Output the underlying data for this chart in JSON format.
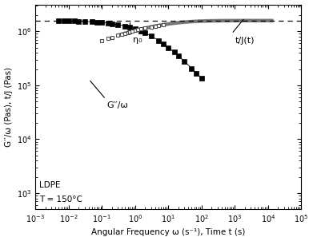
{
  "title": "",
  "xlabel": "Angular Frequency ω (s⁻¹), Time t (s)",
  "ylabel": "G′′/ω (Pas), t/J (Pas)",
  "xlim_log": [
    -3,
    5
  ],
  "ylim_log": [
    2.7,
    6.5
  ],
  "eta0_log": 6.2,
  "annotation_eta0": "η₀",
  "annotation_Gw": "G′′/ω",
  "annotation_tJ": "t/J(t)",
  "ldpe_text": "LDPE",
  "temp_text": "T = 150°C",
  "bg_color": "#ffffff"
}
